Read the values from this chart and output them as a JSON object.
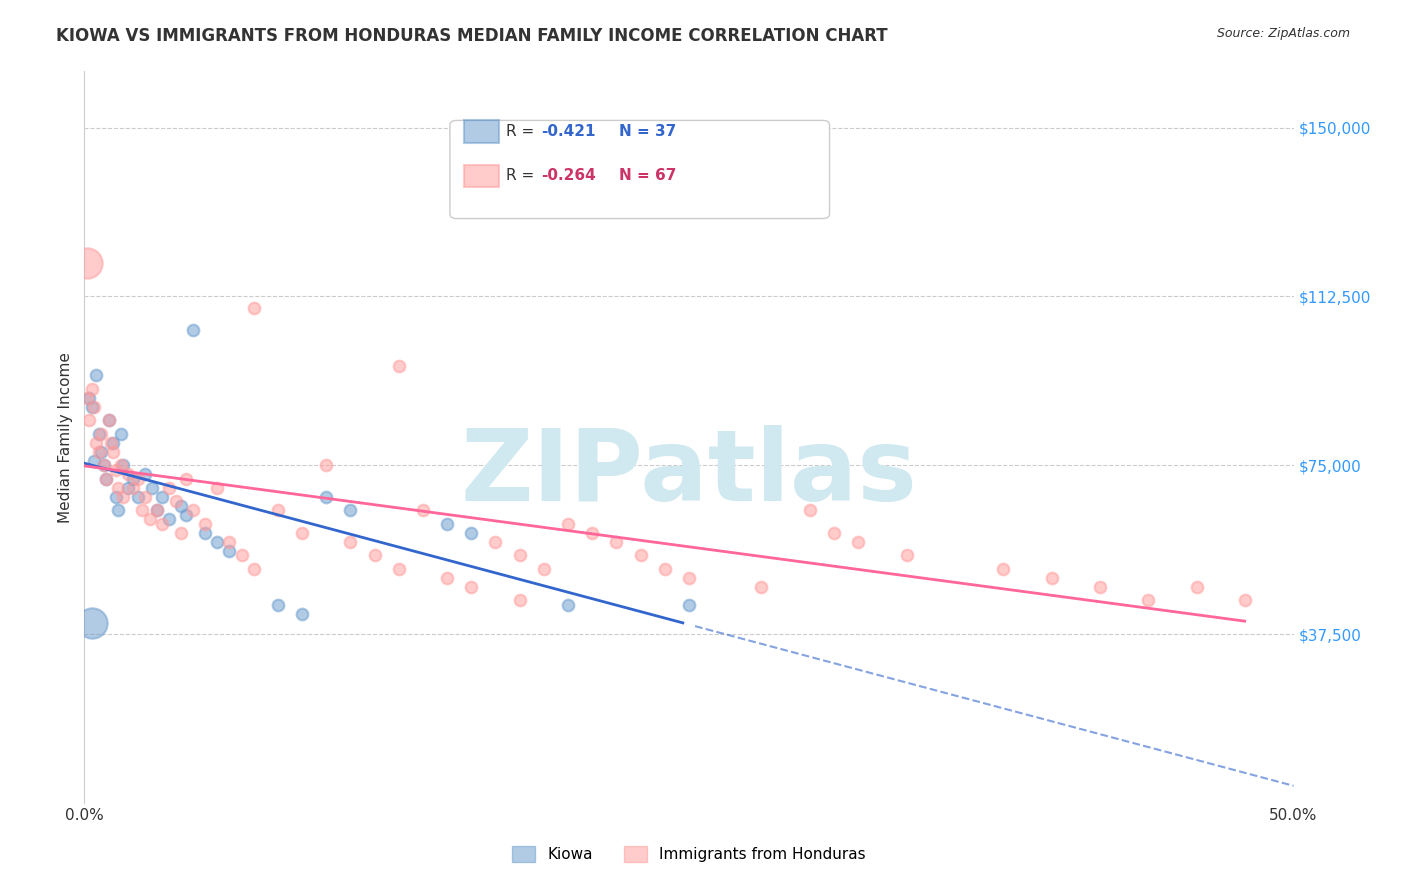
{
  "title": "KIOWA VS IMMIGRANTS FROM HONDURAS MEDIAN FAMILY INCOME CORRELATION CHART",
  "source": "Source: ZipAtlas.com",
  "xlabel": "",
  "ylabel": "Median Family Income",
  "xlim": [
    0.0,
    0.5
  ],
  "ylim": [
    0,
    162500
  ],
  "yticks": [
    37500,
    75000,
    112500,
    150000
  ],
  "ytick_labels": [
    "$37,500",
    "$75,000",
    "$112,500",
    "$150,000"
  ],
  "xticks": [
    0.0,
    0.1,
    0.2,
    0.3,
    0.4,
    0.5
  ],
  "xtick_labels": [
    "0.0%",
    "",
    "",
    "",
    "",
    "50.0%"
  ],
  "background_color": "#ffffff",
  "grid_color": "#cccccc",
  "kiowa_color": "#6699cc",
  "honduras_color": "#ff9999",
  "kiowa_line_color": "#3366cc",
  "honduras_line_color": "#ff6699",
  "kiowa_R": -0.421,
  "kiowa_N": 37,
  "honduras_R": -0.264,
  "honduras_N": 67,
  "legend_R_label_kiowa": "R = ",
  "legend_R_val_kiowa": "-0.421",
  "legend_N_label_kiowa": "N = 37",
  "legend_R_label_honduras": "R = ",
  "legend_R_val_honduras": "-0.264",
  "legend_N_label_honduras": "N = 67",
  "kiowa_points": [
    [
      0.002,
      90000
    ],
    [
      0.003,
      88000
    ],
    [
      0.004,
      76000
    ],
    [
      0.005,
      95000
    ],
    [
      0.006,
      82000
    ],
    [
      0.007,
      78000
    ],
    [
      0.008,
      75000
    ],
    [
      0.009,
      72000
    ],
    [
      0.01,
      85000
    ],
    [
      0.012,
      80000
    ],
    [
      0.013,
      68000
    ],
    [
      0.014,
      65000
    ],
    [
      0.015,
      82000
    ],
    [
      0.016,
      75000
    ],
    [
      0.018,
      70000
    ],
    [
      0.02,
      72000
    ],
    [
      0.022,
      68000
    ],
    [
      0.025,
      73000
    ],
    [
      0.028,
      70000
    ],
    [
      0.03,
      65000
    ],
    [
      0.032,
      68000
    ],
    [
      0.035,
      63000
    ],
    [
      0.04,
      66000
    ],
    [
      0.042,
      64000
    ],
    [
      0.045,
      105000
    ],
    [
      0.05,
      60000
    ],
    [
      0.055,
      58000
    ],
    [
      0.06,
      56000
    ],
    [
      0.08,
      44000
    ],
    [
      0.09,
      42000
    ],
    [
      0.1,
      68000
    ],
    [
      0.11,
      65000
    ],
    [
      0.15,
      62000
    ],
    [
      0.16,
      60000
    ],
    [
      0.2,
      44000
    ],
    [
      0.25,
      44000
    ],
    [
      0.003,
      40000
    ]
  ],
  "kiowa_point_sizes": [
    12,
    12,
    12,
    12,
    12,
    12,
    12,
    12,
    12,
    12,
    12,
    12,
    12,
    12,
    12,
    12,
    12,
    12,
    12,
    12,
    12,
    12,
    12,
    12,
    12,
    12,
    12,
    12,
    12,
    12,
    12,
    12,
    12,
    12,
    12,
    12,
    80
  ],
  "honduras_points": [
    [
      0.001,
      90000
    ],
    [
      0.002,
      85000
    ],
    [
      0.003,
      92000
    ],
    [
      0.004,
      88000
    ],
    [
      0.005,
      80000
    ],
    [
      0.006,
      78000
    ],
    [
      0.007,
      82000
    ],
    [
      0.008,
      75000
    ],
    [
      0.009,
      72000
    ],
    [
      0.01,
      85000
    ],
    [
      0.011,
      80000
    ],
    [
      0.012,
      78000
    ],
    [
      0.013,
      74000
    ],
    [
      0.014,
      70000
    ],
    [
      0.015,
      75000
    ],
    [
      0.016,
      68000
    ],
    [
      0.018,
      73000
    ],
    [
      0.02,
      70000
    ],
    [
      0.022,
      72000
    ],
    [
      0.024,
      65000
    ],
    [
      0.025,
      68000
    ],
    [
      0.027,
      63000
    ],
    [
      0.03,
      65000
    ],
    [
      0.032,
      62000
    ],
    [
      0.035,
      70000
    ],
    [
      0.038,
      67000
    ],
    [
      0.04,
      60000
    ],
    [
      0.042,
      72000
    ],
    [
      0.045,
      65000
    ],
    [
      0.05,
      62000
    ],
    [
      0.055,
      70000
    ],
    [
      0.06,
      58000
    ],
    [
      0.065,
      55000
    ],
    [
      0.07,
      52000
    ],
    [
      0.08,
      65000
    ],
    [
      0.09,
      60000
    ],
    [
      0.1,
      75000
    ],
    [
      0.11,
      58000
    ],
    [
      0.12,
      55000
    ],
    [
      0.13,
      52000
    ],
    [
      0.14,
      65000
    ],
    [
      0.15,
      50000
    ],
    [
      0.16,
      48000
    ],
    [
      0.17,
      58000
    ],
    [
      0.18,
      55000
    ],
    [
      0.19,
      52000
    ],
    [
      0.2,
      62000
    ],
    [
      0.21,
      60000
    ],
    [
      0.22,
      58000
    ],
    [
      0.23,
      55000
    ],
    [
      0.24,
      52000
    ],
    [
      0.25,
      50000
    ],
    [
      0.28,
      48000
    ],
    [
      0.3,
      65000
    ],
    [
      0.31,
      60000
    ],
    [
      0.32,
      58000
    ],
    [
      0.34,
      55000
    ],
    [
      0.38,
      52000
    ],
    [
      0.4,
      50000
    ],
    [
      0.42,
      48000
    ],
    [
      0.44,
      45000
    ],
    [
      0.46,
      48000
    ],
    [
      0.48,
      45000
    ],
    [
      0.001,
      120000
    ],
    [
      0.07,
      110000
    ],
    [
      0.13,
      97000
    ],
    [
      0.18,
      45000
    ]
  ],
  "honduras_point_sizes": [
    12,
    12,
    12,
    12,
    12,
    12,
    12,
    12,
    12,
    12,
    12,
    12,
    12,
    12,
    12,
    12,
    12,
    12,
    12,
    12,
    12,
    12,
    12,
    12,
    12,
    12,
    12,
    12,
    12,
    12,
    12,
    12,
    12,
    12,
    12,
    12,
    12,
    12,
    12,
    12,
    12,
    12,
    12,
    12,
    12,
    12,
    12,
    12,
    12,
    12,
    12,
    12,
    12,
    12,
    12,
    12,
    12,
    12,
    12,
    12,
    12,
    12,
    12,
    80,
    12,
    12,
    12
  ],
  "watermark": "ZIPatlas",
  "watermark_color": "#d0e8f0",
  "watermark_fontsize": 72
}
